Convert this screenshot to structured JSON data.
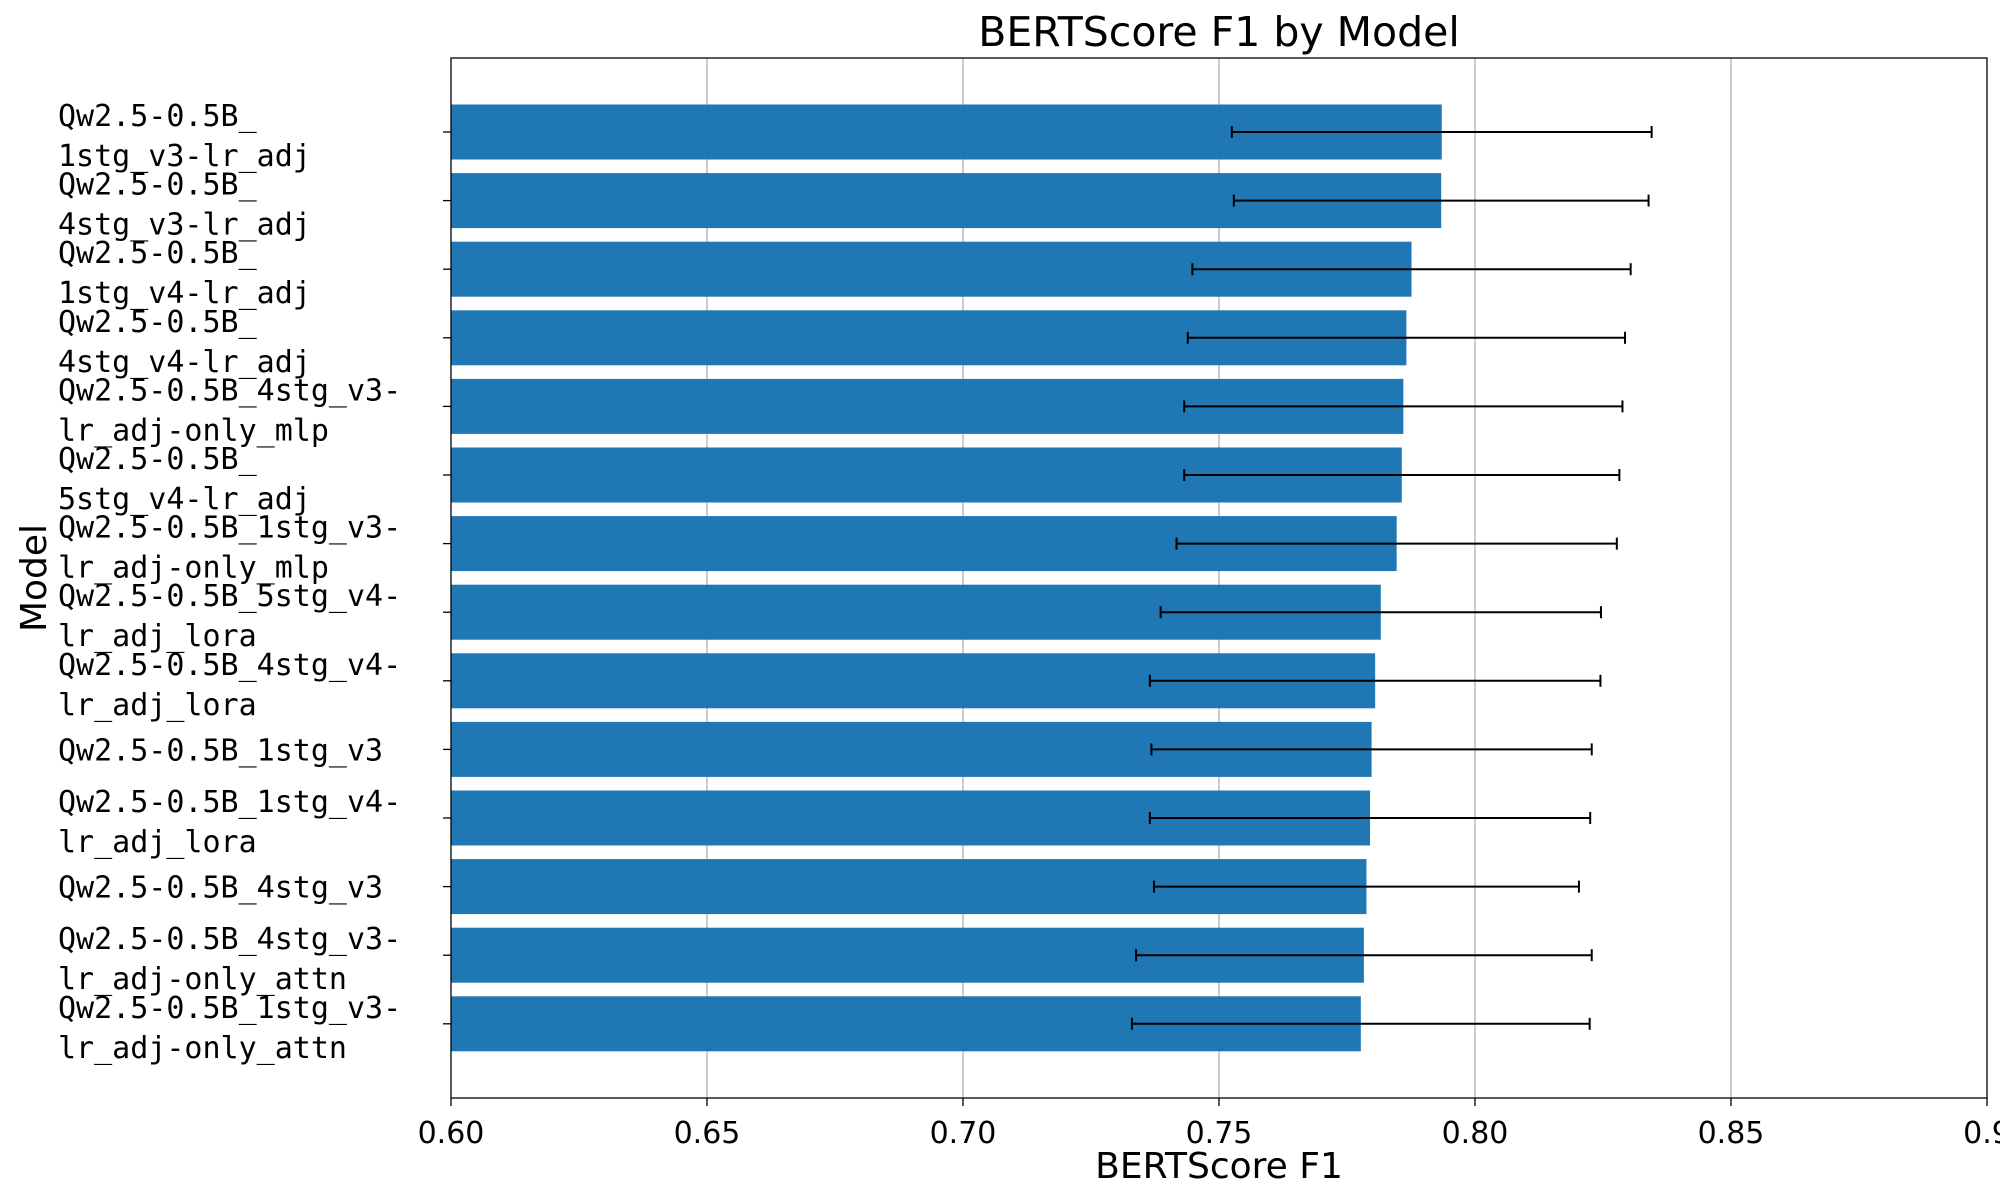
{
  "chart_data": {
    "type": "bar",
    "orientation": "horizontal",
    "title": "BERTScore F1 by Model",
    "xlabel": "BERTScore F1",
    "ylabel": "Model",
    "xlim": [
      0.6,
      0.9
    ],
    "xticks": [
      0.6,
      0.65,
      0.7,
      0.75,
      0.8,
      0.85,
      0.9
    ],
    "xtick_labels": [
      "0.60",
      "0.65",
      "0.70",
      "0.75",
      "0.80",
      "0.85",
      "0.9"
    ],
    "grid": "vertical",
    "legend": "none",
    "bar_color": "#1f77b4",
    "categories": [
      [
        "Qw2.5-0.5B_",
        "1stg_v3-lr_adj"
      ],
      [
        "Qw2.5-0.5B_",
        "4stg_v3-lr_adj"
      ],
      [
        "Qw2.5-0.5B_",
        "1stg_v4-lr_adj"
      ],
      [
        "Qw2.5-0.5B_",
        "4stg_v4-lr_adj"
      ],
      [
        "Qw2.5-0.5B_4stg_v3-",
        "lr_adj-only_mlp"
      ],
      [
        "Qw2.5-0.5B_",
        "5stg_v4-lr_adj"
      ],
      [
        "Qw2.5-0.5B_1stg_v3-",
        "lr_adj-only_mlp"
      ],
      [
        "Qw2.5-0.5B_5stg_v4-",
        "lr_adj_lora"
      ],
      [
        "Qw2.5-0.5B_4stg_v4-",
        "lr_adj_lora"
      ],
      [
        "Qw2.5-0.5B_1stg_v3"
      ],
      [
        "Qw2.5-0.5B_1stg_v4-",
        "lr_adj_lora"
      ],
      [
        "Qw2.5-0.5B_4stg_v3"
      ],
      [
        "Qw2.5-0.5B_4stg_v3-",
        "lr_adj-only_attn"
      ],
      [
        "Qw2.5-0.5B_1stg_v3-",
        "lr_adj-only_attn"
      ]
    ],
    "values": [
      0.7935,
      0.7934,
      0.7876,
      0.7866,
      0.786,
      0.7857,
      0.7847,
      0.7816,
      0.7805,
      0.7798,
      0.7795,
      0.7788,
      0.7783,
      0.7777
    ],
    "errors": [
      0.041,
      0.0405,
      0.0428,
      0.0427,
      0.0428,
      0.0425,
      0.043,
      0.043,
      0.044,
      0.043,
      0.043,
      0.0415,
      0.0445,
      0.0447
    ]
  }
}
